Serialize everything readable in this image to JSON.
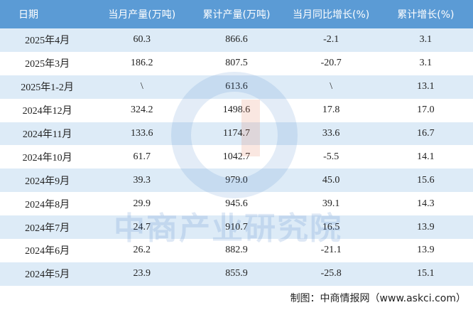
{
  "table": {
    "header": [
      "日期",
      "当月产量(万吨)",
      "累计产量(万吨)",
      "当月同比增长(%)",
      "累计增长(%)"
    ],
    "rows": [
      [
        "2025年4月",
        "60.3",
        "866.6",
        "-2.1",
        "3.1"
      ],
      [
        "2025年3月",
        "186.2",
        "807.5",
        "-20.7",
        "3.1"
      ],
      [
        "2025年1-2月",
        "\\",
        "613.6",
        "\\",
        "13.1"
      ],
      [
        "2024年12月",
        "324.2",
        "1498.6",
        "17.8",
        "17.0"
      ],
      [
        "2024年11月",
        "133.6",
        "1174.7",
        "33.6",
        "16.7"
      ],
      [
        "2024年10月",
        "61.7",
        "1042.7",
        "-5.5",
        "14.1"
      ],
      [
        "2024年9月",
        "39.3",
        "979.0",
        "45.0",
        "15.6"
      ],
      [
        "2024年8月",
        "29.9",
        "945.6",
        "39.1",
        "14.3"
      ],
      [
        "2024年7月",
        "24.7",
        "910.7",
        "16.5",
        "13.9"
      ],
      [
        "2024年6月",
        "26.2",
        "882.9",
        "-21.1",
        "13.9"
      ],
      [
        "2024年5月",
        "23.9",
        "855.9",
        "-25.8",
        "15.1"
      ]
    ]
  },
  "watermark": "中商产业研究院",
  "footer": "制图：中商情报网（www.askci.com）"
}
